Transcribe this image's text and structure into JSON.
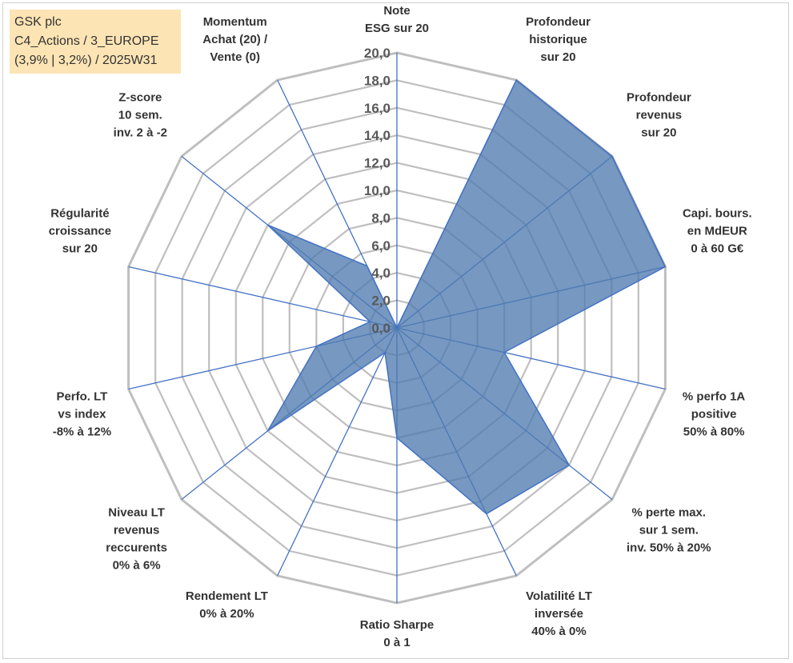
{
  "info_box": {
    "line1": "GSK plc",
    "line2": "C4_Actions / 3_EUROPE",
    "line3": "(3,9% | 3,2%) / 2025W31"
  },
  "colors": {
    "fill": "#4f7bb0",
    "stroke": "#4472c4",
    "grid": "#bfbfbf",
    "info_bg": "#fce4b4"
  },
  "chart_data": {
    "type": "radar",
    "title": "",
    "rmin": 0,
    "rmax": 20,
    "step": 2,
    "tick_labels": [
      "0,0",
      "2,0",
      "4,0",
      "6,0",
      "8,0",
      "10,0",
      "12,0",
      "14,0",
      "16,0",
      "18,0",
      "20,0"
    ],
    "axes": [
      {
        "label": [
          "Note",
          "ESG sur 20"
        ],
        "value": 0
      },
      {
        "label": [
          "Profondeur",
          "historique",
          "sur 20"
        ],
        "value": 20
      },
      {
        "label": [
          "Profondeur",
          "revenus",
          "sur 20"
        ],
        "value": 20
      },
      {
        "label": [
          "Capi. bours.",
          "en MdEUR",
          "0 à 60 G€"
        ],
        "value": 20
      },
      {
        "label": [
          "% perfo 1A",
          "positive",
          "50% à 80%"
        ],
        "value": 8
      },
      {
        "label": [
          "% perte max.",
          "sur 1 sem.",
          "inv. 50% à 20%"
        ],
        "value": 16
      },
      {
        "label": [
          "Volatilité LT",
          "inversée",
          "40% à 0%"
        ],
        "value": 15
      },
      {
        "label": [
          "Ratio Sharpe",
          "0 à 1"
        ],
        "value": 8
      },
      {
        "label": [
          "Rendement LT",
          "0% à 20%"
        ],
        "value": 2
      },
      {
        "label": [
          "Niveau LT",
          "revenus",
          "reccurents",
          "0% à 6%"
        ],
        "value": 12
      },
      {
        "label": [
          "Perfo. LT",
          "vs index",
          "-8% à 12%"
        ],
        "value": 6
      },
      {
        "label": [
          "Régularité",
          "croissance",
          "sur 20"
        ],
        "value": 2
      },
      {
        "label": [
          "Z-score",
          "10 sem.",
          "inv. 2 à -2"
        ],
        "value": 12
      },
      {
        "label": [
          "Momentum",
          "Achat (20) /",
          "Vente (0)"
        ],
        "value": 5
      }
    ]
  }
}
